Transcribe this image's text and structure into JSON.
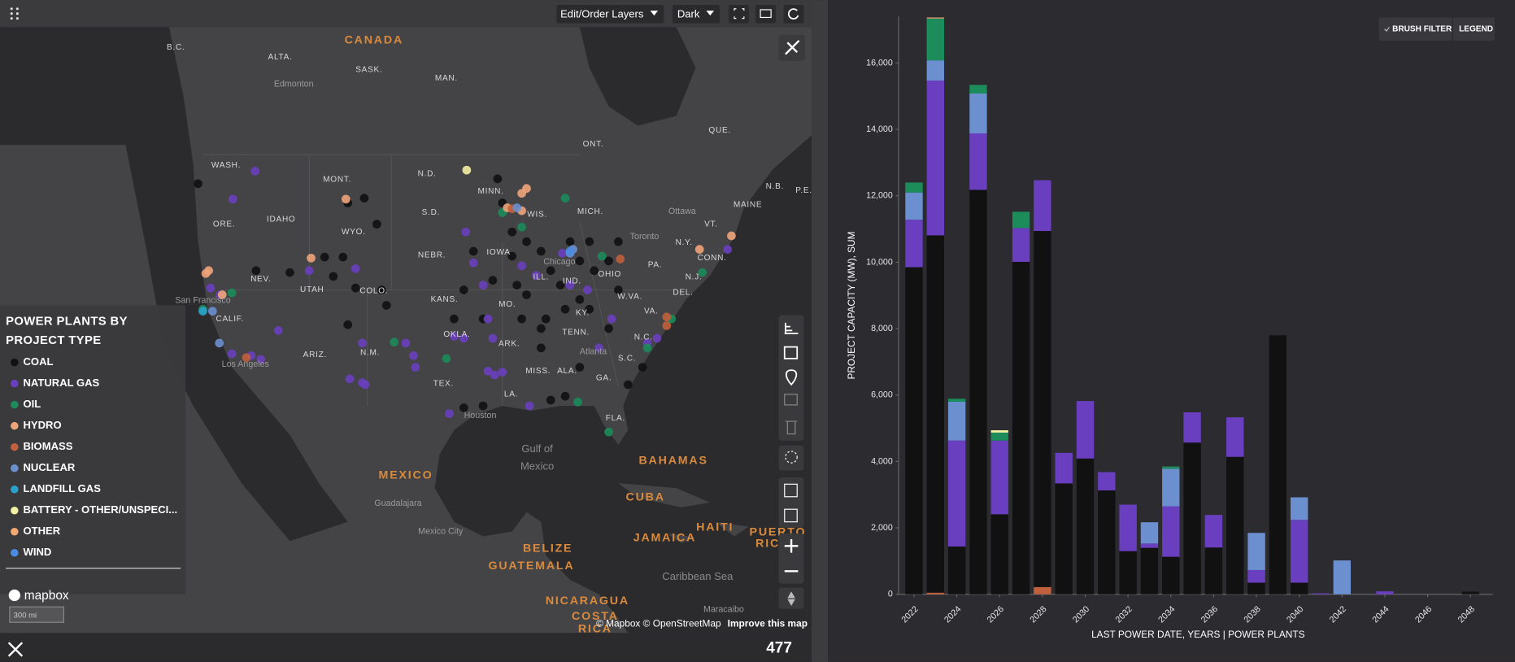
{
  "toolbar": {
    "layers": "Edit/Order Layers",
    "theme": "Dark"
  },
  "map": {
    "labels": [
      "CANADA",
      "B.C.",
      "ALTA.",
      "SASK.",
      "MAN.",
      "ONT.",
      "QUE.",
      "Edmonton",
      "WASH.",
      "MONT.",
      "N.D.",
      "MINN.",
      "WIS.",
      "MICH.",
      "ORE.",
      "IDAHO",
      "WYO.",
      "S.D.",
      "N.B.",
      "MAINE",
      "P.E.",
      "VT.",
      "N.Y.",
      "Ottawa",
      "Toronto",
      "NEV.",
      "UTAH",
      "COLO.",
      "NEBR.",
      "IOWA",
      "Chicago",
      "ILL.",
      "IND.",
      "OHIO",
      "PA.",
      "CONN.",
      "N.J.",
      "DEL.",
      "W.VA.",
      "VA.",
      "San Francisco",
      "CALIF.",
      "KANS.",
      "MO.",
      "KY.",
      "TENN.",
      "N.C.",
      "ARIZ.",
      "N.M.",
      "OKLA.",
      "ARK.",
      "S.C.",
      "Atlanta",
      "Los Angeles",
      "TEX.",
      "MISS.",
      "ALA.",
      "GA.",
      "LA.",
      "Houston",
      "FLA.",
      "Gulf of",
      "Mexico",
      "MEXICO",
      "BAHAMAS",
      "CUBA",
      "Guadalajara",
      "Mexico City",
      "HAITI",
      "JAMAICA",
      "PUERTO",
      "RICO",
      "BELIZE",
      "GUATEMALA",
      "Caribbean Sea",
      "NICARAGUA",
      "COSTA",
      "RICA",
      "Maracaibo"
    ],
    "legend_title": "POWER PLANTS BY PROJECT TYPE",
    "logo": "mapbox",
    "scale": "300 mi",
    "attribution": "© Mapbox © OpenStreetMap",
    "improve": "Improve this map"
  },
  "count": 477,
  "chart_data": {
    "type": "bar",
    "stacked": true,
    "buttons": [
      "BRUSH FILTER",
      "LEGEND"
    ],
    "ylabel": "PROJECT CAPACITY (MW), SUM",
    "xlabel": "LAST POWER DATE, YEARS | POWER PLANTS",
    "categories": [
      "2022",
      null,
      "2024",
      null,
      "2026",
      null,
      "2028",
      null,
      "2030",
      null,
      "2032",
      null,
      "2034",
      null,
      "2036",
      null,
      "2038",
      null,
      "2040",
      null,
      "2042",
      null,
      "2044",
      null,
      "2046",
      null,
      "2048"
    ],
    "ylim": [
      0,
      17400
    ],
    "yticks": [
      0,
      {
        "value": 2000,
        "label": "2,000"
      },
      {
        "value": 4000,
        "label": "4,000"
      },
      {
        "value": 6000,
        "label": "6,000"
      },
      {
        "value": 8000,
        "label": "8,000"
      },
      {
        "value": 10000,
        "label": "10,000"
      },
      {
        "value": 12000,
        "label": "12,000"
      },
      {
        "value": 14000,
        "label": "14,000"
      },
      {
        "value": 16000,
        "label": "16,000"
      }
    ],
    "series": [
      {
        "name": "COAL",
        "color": "#111112",
        "values": [
          9850,
          10760,
          1440,
          12180,
          2410,
          10010,
          10720,
          3340,
          4090,
          3130,
          1300,
          1400,
          1130,
          4570,
          1410,
          4140,
          350,
          7800,
          350,
          0,
          0,
          0,
          0,
          0,
          0,
          0,
          80
        ]
      },
      {
        "name": "NATURAL GAS",
        "color": "#6a3fbf",
        "values": [
          1430,
          4660,
          3190,
          1700,
          2220,
          1020,
          1530,
          920,
          1730,
          550,
          1400,
          130,
          1520,
          910,
          980,
          1190,
          380,
          0,
          1890,
          30,
          0,
          0,
          90,
          0,
          0,
          0,
          0
        ]
      },
      {
        "name": "OIL",
        "color": "#1b8c5a",
        "values": [
          300,
          1260,
          90,
          260,
          240,
          490,
          0,
          0,
          0,
          0,
          0,
          0,
          70,
          0,
          0,
          0,
          0,
          0,
          0,
          0,
          0,
          0,
          0,
          0,
          0,
          0,
          0
        ]
      },
      {
        "name": "HYDRO",
        "color": "#f0a47a",
        "values": [
          0,
          30,
          0,
          0,
          0,
          0,
          0,
          0,
          0,
          0,
          0,
          0,
          0,
          0,
          0,
          0,
          0,
          0,
          0,
          0,
          0,
          0,
          0,
          0,
          0,
          0,
          0
        ]
      },
      {
        "name": "BIOMASS",
        "color": "#c0603c",
        "values": [
          0,
          50,
          0,
          0,
          0,
          0,
          220,
          0,
          0,
          0,
          0,
          0,
          0,
          0,
          0,
          0,
          0,
          0,
          0,
          0,
          0,
          0,
          0,
          0,
          0,
          0,
          0
        ]
      },
      {
        "name": "NUCLEAR",
        "color": "#6b8fcf",
        "values": [
          820,
          610,
          1170,
          1200,
          0,
          0,
          0,
          0,
          0,
          0,
          0,
          640,
          1130,
          0,
          0,
          0,
          1120,
          0,
          680,
          0,
          1020,
          0,
          0,
          0,
          0,
          0,
          0
        ]
      },
      {
        "name": "LANDFILL GAS",
        "color": "#2ba2cc",
        "values": [
          0,
          0,
          0,
          0,
          0,
          0,
          0,
          0,
          0,
          0,
          0,
          0,
          0,
          0,
          0,
          0,
          0,
          0,
          0,
          0,
          0,
          0,
          0,
          0,
          0,
          0,
          0
        ]
      },
      {
        "name": "BATTERY - OTHER/UNSPECI...",
        "color": "#f2f0a2",
        "values": [
          0,
          0,
          0,
          0,
          70,
          0,
          0,
          0,
          0,
          0,
          0,
          0,
          0,
          0,
          0,
          0,
          0,
          0,
          0,
          0,
          0,
          0,
          0,
          0,
          0,
          0,
          0
        ]
      },
      {
        "name": "OTHER",
        "color": "#f5a870",
        "values": [
          0,
          0,
          0,
          0,
          0,
          0,
          0,
          0,
          0,
          0,
          0,
          0,
          0,
          0,
          0,
          0,
          0,
          0,
          0,
          0,
          0,
          0,
          0,
          0,
          0,
          0,
          0
        ]
      },
      {
        "name": "WIND",
        "color": "#4a8ce2",
        "values": [
          0,
          0,
          0,
          0,
          0,
          0,
          0,
          0,
          0,
          0,
          0,
          0,
          0,
          0,
          0,
          0,
          0,
          0,
          0,
          0,
          0,
          0,
          0,
          0,
          0,
          0,
          0
        ]
      }
    ]
  }
}
